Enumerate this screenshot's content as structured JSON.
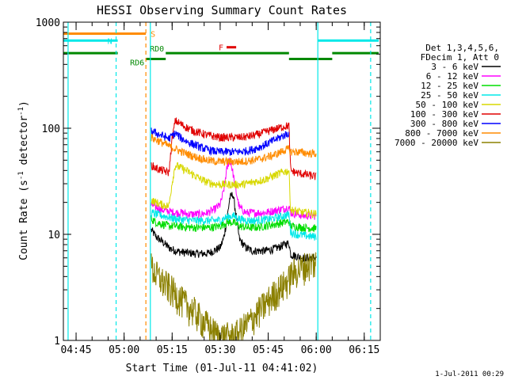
{
  "chart_data": {
    "type": "line",
    "title": "HESSI Observing Summary Count Rates",
    "xlabel": "Start Time (01-Jul-11 04:41:02)",
    "ylabel": "Count Rate (s⁻¹ detector⁻¹)",
    "ylabel_parts": [
      "Count Rate (s",
      "-1",
      " detector",
      "-1",
      ")"
    ],
    "y_scale": "log",
    "ylim": [
      1,
      1000
    ],
    "y_ticks": [
      {
        "v": 1,
        "label": "1"
      },
      {
        "v": 10,
        "label": "10"
      },
      {
        "v": 100,
        "label": "100"
      },
      {
        "v": 1000,
        "label": "1000"
      }
    ],
    "xlim_minutes": [
      281.03,
      380.0
    ],
    "x_ticks": [
      {
        "v": 285,
        "label": "04:45"
      },
      {
        "v": 300,
        "label": "05:00"
      },
      {
        "v": 315,
        "label": "05:15"
      },
      {
        "v": 330,
        "label": "05:30"
      },
      {
        "v": 345,
        "label": "05:45"
      },
      {
        "v": 360,
        "label": "06:00"
      },
      {
        "v": 375,
        "label": "06:15"
      }
    ],
    "footer_date": "1-Jul-2011 00:29",
    "legend": {
      "placement": "right",
      "header": [
        "Det 1,3,4,5,6,",
        "FDecim 1, Att 0"
      ],
      "entries": [
        {
          "label": "3 - 6 keV",
          "color": "#000000"
        },
        {
          "label": "6 - 12 keV",
          "color": "#ff00ff"
        },
        {
          "label": "12 - 25 keV",
          "color": "#00dd00"
        },
        {
          "label": "25 - 50 keV",
          "color": "#00e8e8"
        },
        {
          "label": "50 - 100 keV",
          "color": "#d8d800"
        },
        {
          "label": "100 - 300 keV",
          "color": "#e00000"
        },
        {
          "label": "300 - 800 keV",
          "color": "#0000ff"
        },
        {
          "label": "800 - 7000 keV",
          "color": "#ff8c00"
        },
        {
          "label": "7000 - 20000 keV",
          "color": "#8b8000"
        }
      ]
    },
    "flags": [
      {
        "label": "S",
        "color": "#ff8c00",
        "y": 780,
        "segments": [
          [
            281.0,
            306.8
          ]
        ]
      },
      {
        "label": "N",
        "color": "#00e8e8",
        "y": 670,
        "segments": [
          [
            281.0,
            298.0
          ],
          [
            360.5,
            379.5
          ]
        ]
      },
      {
        "label": "RD0",
        "color": "#008800",
        "y": 510,
        "segments": [
          [
            281.0,
            298.0
          ],
          [
            313.0,
            351.5
          ],
          [
            365.0,
            379.5
          ]
        ]
      },
      {
        "label": "RD6",
        "color": "#008800",
        "y": 450,
        "segments": [
          [
            306.8,
            313.0
          ],
          [
            351.5,
            365.0
          ]
        ]
      },
      {
        "label": "F",
        "color": "#e00000",
        "y": 580,
        "segments": [
          [
            332.0,
            335.0
          ]
        ]
      }
    ],
    "vertical_markers": [
      {
        "x": 282.5,
        "color": "#00e8e8",
        "style": "solid"
      },
      {
        "x": 297.5,
        "color": "#00e8e8",
        "style": "dashed"
      },
      {
        "x": 306.8,
        "color": "#ff8c00",
        "style": "dashed"
      },
      {
        "x": 308.2,
        "color": "#00e8e8",
        "style": "solid"
      },
      {
        "x": 360.5,
        "color": "#00e8e8",
        "style": "solid"
      },
      {
        "x": 377.0,
        "color": "#00e8e8",
        "style": "dashed"
      }
    ],
    "series": [
      {
        "name": "3 - 6 keV",
        "color": "#000000",
        "x": [
          308.5,
          310,
          312,
          314,
          316,
          318,
          320,
          322,
          324,
          326,
          328,
          330,
          331,
          332,
          333,
          334,
          335,
          336,
          338,
          340,
          342,
          344,
          346,
          348,
          350,
          351.5,
          352,
          354,
          356,
          358,
          360
        ],
        "y": [
          11,
          9.5,
          8.5,
          7.5,
          7,
          6.8,
          6.7,
          6.6,
          6.6,
          6.6,
          7,
          7.5,
          9,
          13,
          22,
          24,
          15,
          9,
          7.5,
          7,
          7,
          7,
          7.2,
          7.5,
          8,
          8.3,
          6.5,
          6.2,
          6,
          6,
          6
        ]
      },
      {
        "name": "6 - 12 keV",
        "color": "#ff00ff",
        "x": [
          308.5,
          310,
          312,
          314,
          316,
          318,
          320,
          322,
          324,
          326,
          328,
          330,
          331,
          332,
          333,
          334,
          335,
          336,
          338,
          340,
          342,
          344,
          346,
          348,
          350,
          351.5,
          352,
          354,
          356,
          358,
          360
        ],
        "y": [
          19,
          18,
          17,
          16.5,
          16,
          16,
          15.5,
          15.5,
          15.5,
          16,
          17,
          19,
          25,
          40,
          52,
          38,
          25,
          18,
          16,
          16,
          16,
          16,
          16.5,
          17,
          17.5,
          18,
          16,
          15.5,
          15,
          15,
          15
        ]
      },
      {
        "name": "12 - 25 keV",
        "color": "#00dd00",
        "x": [
          308.5,
          310,
          312,
          314,
          316,
          318,
          320,
          322,
          324,
          326,
          328,
          330,
          332,
          334,
          336,
          338,
          340,
          342,
          344,
          346,
          348,
          350,
          351.5,
          352,
          354,
          356,
          358,
          360
        ],
        "y": [
          14,
          13,
          12.5,
          12,
          12,
          11.8,
          11.7,
          11.6,
          11.6,
          11.6,
          11.7,
          12,
          13,
          13,
          12,
          11.7,
          11.6,
          11.7,
          12,
          12.3,
          12.6,
          13,
          13.3,
          12,
          11.8,
          11.6,
          11.5,
          11.4
        ]
      },
      {
        "name": "25 - 50 keV",
        "color": "#00e8e8",
        "x": [
          308.5,
          310,
          312,
          314,
          316,
          318,
          320,
          322,
          324,
          326,
          328,
          330,
          332,
          334,
          336,
          338,
          340,
          342,
          344,
          346,
          348,
          350,
          351.5,
          352,
          354,
          356,
          358,
          360
        ],
        "y": [
          16,
          15.5,
          15,
          14.5,
          14,
          13.8,
          13.6,
          13.5,
          13.5,
          13.5,
          13.5,
          13.6,
          14.5,
          15,
          14,
          13.6,
          13.5,
          13.6,
          13.8,
          14,
          14.5,
          15,
          15.5,
          10.5,
          10,
          9.8,
          9.6,
          9.5
        ]
      },
      {
        "name": "50 - 100 keV",
        "color": "#d8d800",
        "x": [
          308.5,
          310,
          312,
          314,
          315,
          316,
          318,
          320,
          322,
          324,
          326,
          328,
          330,
          332,
          334,
          336,
          338,
          340,
          342,
          344,
          346,
          348,
          350,
          351.5,
          352,
          354,
          356,
          358,
          360
        ],
        "y": [
          21,
          20,
          19,
          18.5,
          31,
          45,
          42,
          39,
          36,
          33,
          31,
          30,
          29.5,
          29.5,
          29.5,
          29.5,
          30,
          31,
          32,
          33,
          35,
          37,
          39,
          40,
          17,
          16.5,
          16,
          16,
          15.5
        ]
      },
      {
        "name": "100 - 300 keV",
        "color": "#e00000",
        "x": [
          308.5,
          310,
          312,
          314,
          315,
          316,
          318,
          320,
          322,
          324,
          326,
          328,
          330,
          332,
          334,
          336,
          338,
          340,
          342,
          344,
          346,
          348,
          350,
          351.5,
          352,
          354,
          356,
          358,
          360
        ],
        "y": [
          45,
          42,
          40,
          38,
          80,
          118,
          108,
          100,
          94,
          90,
          86,
          84,
          82,
          82,
          82,
          82,
          83,
          85,
          88,
          92,
          96,
          100,
          104,
          106,
          40,
          38,
          37,
          36,
          35
        ]
      },
      {
        "name": "300 - 800 keV",
        "color": "#0000ff",
        "x": [
          308.5,
          310,
          312,
          314,
          315,
          316,
          318,
          320,
          322,
          324,
          326,
          328,
          330,
          332,
          334,
          336,
          338,
          340,
          342,
          344,
          346,
          348,
          350,
          351.5
        ],
        "y": [
          95,
          90,
          85,
          80,
          85,
          90,
          80,
          74,
          70,
          66,
          63,
          61,
          60,
          60,
          60,
          60,
          61,
          63,
          66,
          70,
          75,
          80,
          86,
          90
        ]
      },
      {
        "name": "800 - 7000 keV",
        "color": "#ff8c00",
        "x": [
          308.5,
          310,
          312,
          314,
          316,
          318,
          320,
          322,
          324,
          326,
          328,
          330,
          332,
          334,
          336,
          338,
          340,
          342,
          344,
          346,
          348,
          350,
          351.5,
          352,
          354,
          356,
          358,
          360
        ],
        "y": [
          82,
          78,
          73,
          68,
          64,
          60,
          57,
          54,
          52,
          50,
          49,
          48.5,
          48.5,
          48.5,
          48.5,
          49,
          50,
          51,
          53,
          55,
          58,
          62,
          64,
          60,
          60,
          59,
          58,
          58
        ]
      },
      {
        "name": "7000 - 20000 keV",
        "color": "#8b8000",
        "x": [
          308.5,
          310,
          312,
          314,
          316,
          318,
          320,
          322,
          324,
          326,
          328,
          330,
          332,
          334,
          336,
          338,
          340,
          342,
          344,
          346,
          348,
          350,
          351.5,
          352,
          354,
          356,
          358,
          360
        ],
        "y": [
          5,
          4.2,
          3.6,
          3.2,
          2.8,
          2.4,
          2.1,
          1.9,
          1.6,
          1.4,
          1.2,
          1.1,
          1.1,
          1.1,
          1.2,
          1.4,
          1.6,
          1.9,
          2.2,
          2.6,
          3.0,
          3.4,
          3.8,
          4.2,
          4.6,
          5.0,
          5.3,
          5.5
        ]
      }
    ]
  }
}
